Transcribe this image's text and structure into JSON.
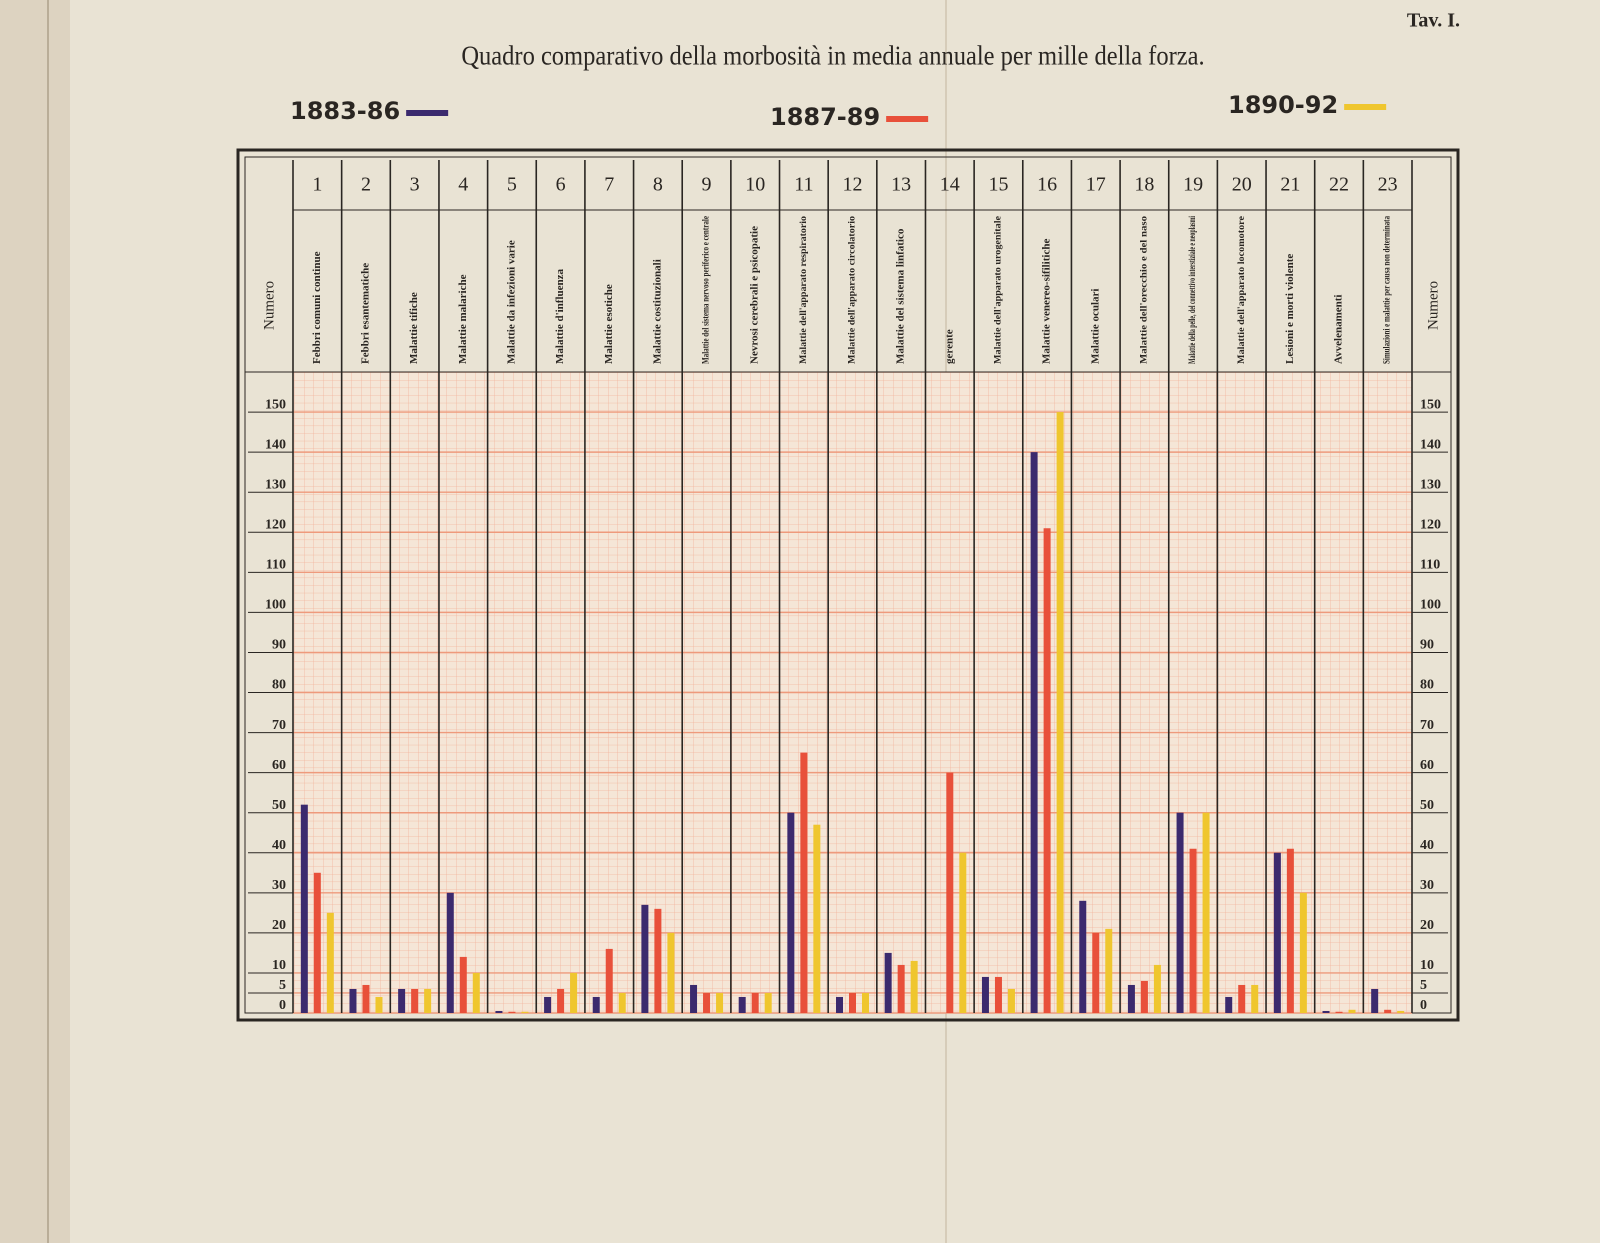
{
  "chart_data": {
    "type": "bar",
    "plate": "Tav. I.",
    "title": "Quadro comparativo della morbosità in media annuale per mille della forza.",
    "y_label": "Numero",
    "numbers": [
      "1",
      "2",
      "3",
      "4",
      "5",
      "6",
      "7",
      "8",
      "9",
      "10",
      "11",
      "12",
      "13",
      "14",
      "15",
      "16",
      "17",
      "18",
      "19",
      "20",
      "21",
      "22",
      "23"
    ],
    "categories": [
      "Febbri comuni continue",
      "Febbri esantematiche",
      "Malattie tifiche",
      "Malattie malariche",
      "Malattie da infezioni varie",
      "Malattie d'influenza",
      "Malattie esotiche",
      "Malattie costituzionali",
      "Malattie del sistema nervoso periferico e centrale",
      "Nevrosi cerebrali e psicopatie",
      "Malattie dell'apparato respiratorio",
      "Malattie dell'apparato circolatorio",
      "Malattie del sistema linfatico",
      "gerente",
      "Malattie dell'apparato urogenitale",
      "Malattie venereo-sifilitiche",
      "Malattie oculari",
      "Malattie dell'orecchio e del naso",
      "Malattie della pelle, del connettivo interstiziale e neoplasmi",
      "Malattie dell'apparato locomotore",
      "Lesioni e morti violente",
      "Avvelenamenti",
      "Simulazioni e malattie per causa non determinata"
    ],
    "series": [
      {
        "name": "1883-86",
        "color": "#3b2a6e",
        "values": [
          52,
          6,
          6,
          30,
          0.5,
          4,
          4,
          27,
          7,
          4,
          50,
          4,
          15,
          0,
          9,
          140,
          28,
          7,
          50,
          4,
          40,
          0.5,
          6
        ]
      },
      {
        "name": "1887-89",
        "color": "#e8503a",
        "values": [
          35,
          7,
          6,
          14,
          0.3,
          6,
          16,
          26,
          5,
          5,
          65,
          5,
          12,
          60,
          9,
          121,
          20,
          8,
          41,
          7,
          41,
          0.3,
          0.8
        ]
      },
      {
        "name": "1890-92",
        "color": "#efc62e",
        "values": [
          25,
          4,
          6,
          10,
          0.3,
          10,
          5,
          20,
          5,
          5,
          47,
          5,
          13,
          40,
          6,
          150,
          21,
          12,
          50,
          7,
          30,
          0.8,
          0.5
        ]
      }
    ],
    "ylim": [
      0,
      160
    ],
    "yticks": [
      0,
      5,
      10,
      20,
      30,
      40,
      50,
      60,
      70,
      80,
      90,
      100,
      110,
      120,
      130,
      140,
      150
    ],
    "grid": true
  }
}
